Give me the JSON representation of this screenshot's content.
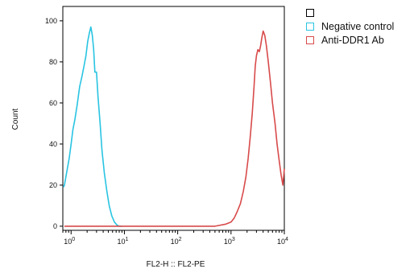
{
  "chart_data": {
    "type": "line",
    "xlabel": "FL2-H :: FL2-PE",
    "ylabel": "Count",
    "x_scale": "log",
    "xlim": [
      0.7,
      10000
    ],
    "ylim": [
      -2,
      107
    ],
    "x_ticks": [
      {
        "value": 1,
        "label": "10",
        "exp": "0"
      },
      {
        "value": 10,
        "label": "10",
        "exp": "1"
      },
      {
        "value": 100,
        "label": "10",
        "exp": "2"
      },
      {
        "value": 1000,
        "label": "10",
        "exp": "3"
      },
      {
        "value": 10000,
        "label": "10",
        "exp": "4"
      }
    ],
    "y_ticks": [
      0,
      20,
      40,
      60,
      80,
      100
    ],
    "grid": false,
    "legend_position": "top-right",
    "series": [
      {
        "name": "",
        "color": "#000000",
        "x": [],
        "y": []
      },
      {
        "name": "Negative control",
        "color": "#29c4e2",
        "x": [
          0.72,
          0.75,
          0.8,
          0.85,
          0.92,
          1.0,
          1.08,
          1.18,
          1.3,
          1.45,
          1.6,
          1.75,
          1.9,
          2.05,
          2.2,
          2.35,
          2.5,
          2.65,
          2.8,
          3.0,
          3.2,
          3.5,
          3.8,
          4.2,
          4.7,
          5.2,
          5.8,
          6.5,
          7.3,
          8.0,
          9.0
        ],
        "y": [
          19,
          20,
          24,
          28,
          33,
          40,
          47,
          52,
          59,
          68,
          73,
          78,
          83,
          90,
          94,
          97,
          93,
          86,
          75,
          75,
          63,
          50,
          37,
          26,
          17,
          10,
          5,
          2,
          0.5,
          0,
          0
        ]
      },
      {
        "name": "Anti-DDR1 Ab",
        "color": "#d84a4a",
        "x": [
          0.75,
          1,
          2,
          5,
          10,
          30,
          100,
          300,
          500,
          800,
          1000,
          1150,
          1300,
          1500,
          1700,
          1900,
          2100,
          2300,
          2500,
          2700,
          2850,
          3000,
          3200,
          3400,
          3600,
          3800,
          4000,
          4300,
          4600,
          5000,
          5500,
          6000,
          6700,
          7300,
          8000,
          8700,
          9400,
          10000
        ],
        "y": [
          0,
          0,
          0,
          0,
          0,
          0,
          0,
          0,
          0,
          1,
          2,
          4,
          7,
          11,
          17,
          24,
          33,
          44,
          55,
          68,
          78,
          83,
          86,
          85,
          88,
          92,
          95,
          93,
          88,
          80,
          70,
          60,
          50,
          40,
          32,
          25,
          20,
          28
        ]
      }
    ]
  }
}
